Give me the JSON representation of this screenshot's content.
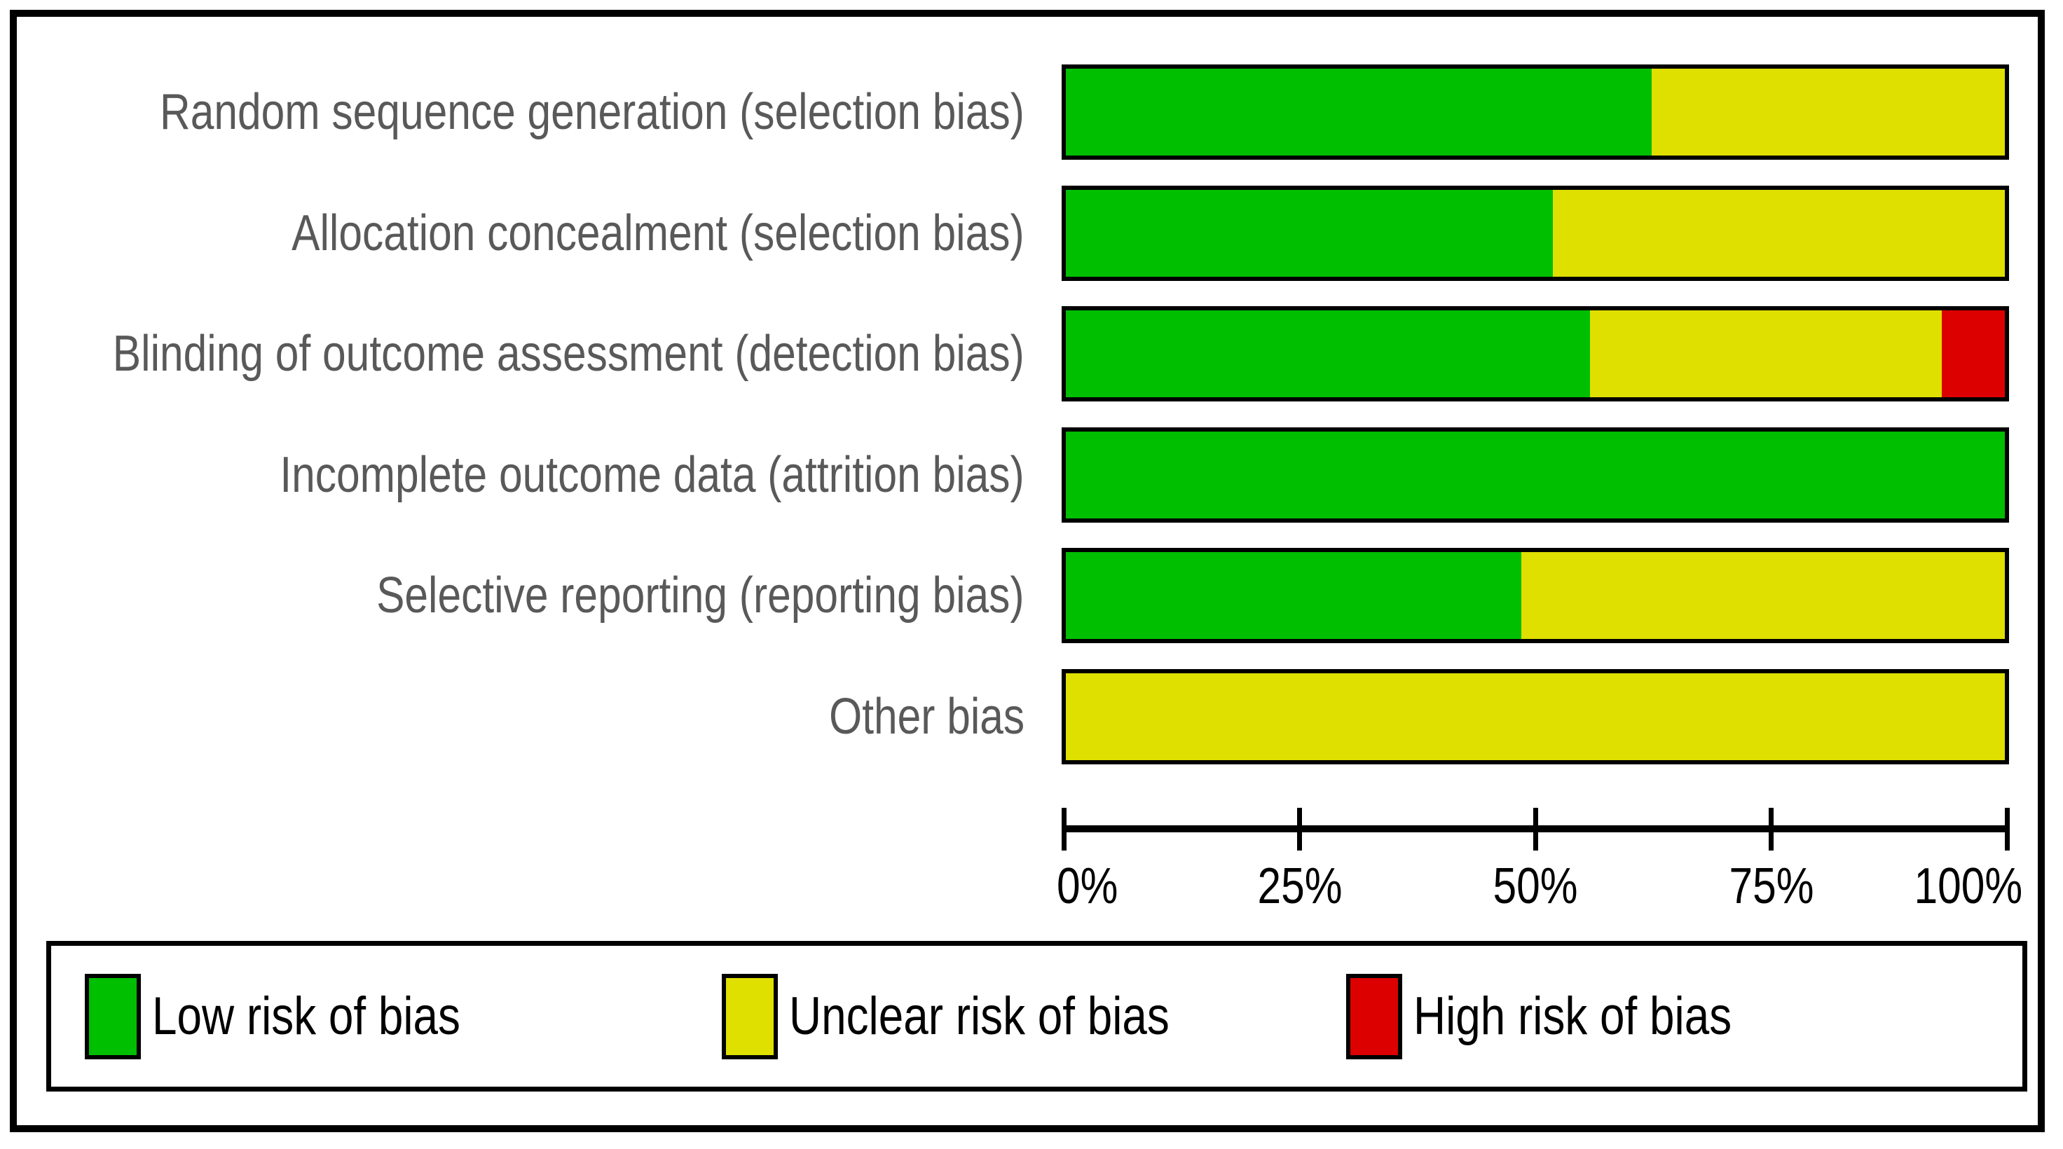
{
  "figure": {
    "kind": "risk-of-bias-graph"
  },
  "colors": {
    "low_risk": "#00be00",
    "unclear_risk": "#dfdf00",
    "high_risk": "#dd0000",
    "category_text": "#595959",
    "axis": "#000000",
    "background": "#ffffff"
  },
  "chart_data": {
    "type": "bar",
    "orientation": "horizontal-stacked",
    "title": "",
    "xlabel": "",
    "ylabel": "",
    "grid": false,
    "legend_position": "bottom",
    "xlim": [
      0,
      100
    ],
    "x_ticks": [
      "0%",
      "25%",
      "50%",
      "75%",
      "100%"
    ],
    "categories": [
      "Random sequence generation (selection bias)",
      "Allocation concealment (selection bias)",
      "Blinding of outcome assessment (detection bias)",
      "Incomplete outcome data (attrition bias)",
      "Selective reporting (reporting bias)",
      "Other bias"
    ],
    "series": [
      {
        "name": "Low risk of bias",
        "key": "low",
        "color": "#00be00",
        "values": [
          62.4,
          51.9,
          55.8,
          100,
          48.5,
          0
        ]
      },
      {
        "name": "Unclear risk of bias",
        "key": "unclear",
        "color": "#dfdf00",
        "values": [
          37.6,
          48.1,
          37.5,
          0,
          51.5,
          100
        ]
      },
      {
        "name": "High risk of bias",
        "key": "high",
        "color": "#dd0000",
        "values": [
          0,
          0,
          6.7,
          0,
          0,
          0
        ]
      }
    ]
  }
}
